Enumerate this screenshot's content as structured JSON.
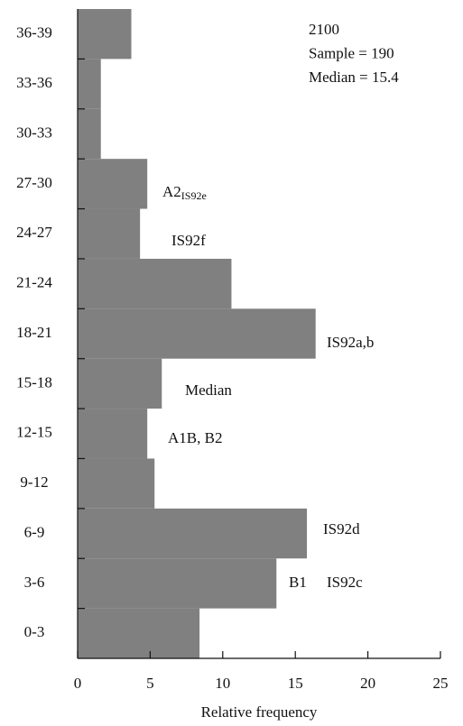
{
  "chart_data": {
    "type": "bar",
    "orientation": "horizontal",
    "categories": [
      "0-3",
      "3-6",
      "6-9",
      "9-12",
      "12-15",
      "15-18",
      "18-21",
      "21-24",
      "24-27",
      "27-30",
      "30-33",
      "33-36",
      "36-39"
    ],
    "values": [
      8.4,
      13.7,
      15.8,
      5.3,
      4.8,
      5.8,
      16.4,
      10.6,
      4.3,
      4.8,
      1.6,
      1.6,
      3.7
    ],
    "color": "#808080",
    "xlim": [
      0,
      25
    ],
    "xticks": [
      0,
      5,
      10,
      15,
      20,
      25
    ],
    "x_label": "Relative frequency",
    "info": [
      "2100",
      "Sample = 190",
      "Median = 15.4"
    ],
    "annotations": [
      {
        "text": "A2",
        "sub": "IS92e"
      },
      {
        "text": "IS92f"
      },
      {
        "text": "IS92a,b"
      },
      {
        "text": "Median"
      },
      {
        "text": "A1B, B2"
      },
      {
        "text": "IS92d"
      },
      {
        "text": "B1"
      },
      {
        "text": "IS92c"
      }
    ]
  }
}
